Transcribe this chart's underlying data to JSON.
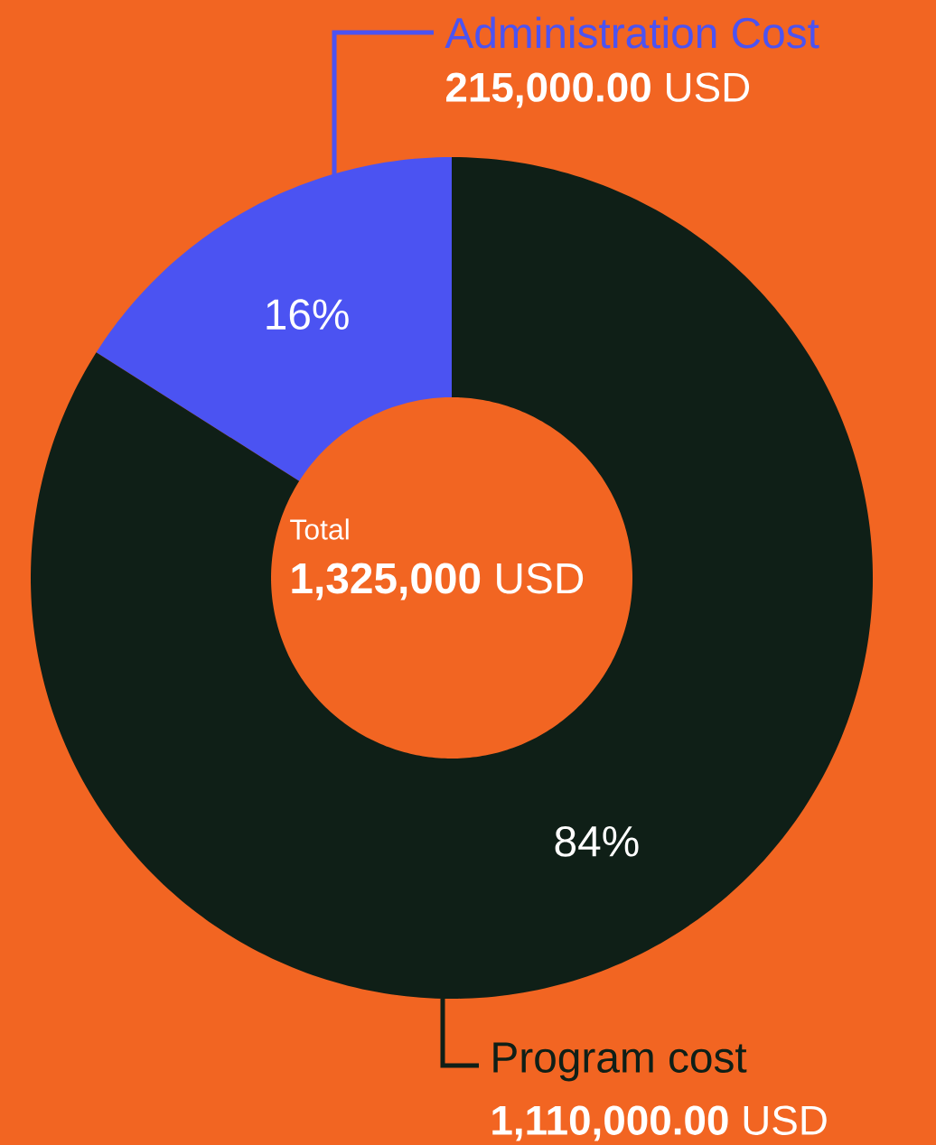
{
  "chart_data": {
    "type": "donut",
    "categories": [
      "Administration Cost",
      "Program cost"
    ],
    "values": [
      16,
      84
    ],
    "colors": [
      "#4b53f2",
      "#0f1f17"
    ],
    "value_labels": [
      "16%",
      "84%"
    ],
    "annotations": [
      "Total",
      "**1,325,000** USD",
      "**215,000.00** USD",
      "**1,110,000.00** USD"
    ]
  }
}
